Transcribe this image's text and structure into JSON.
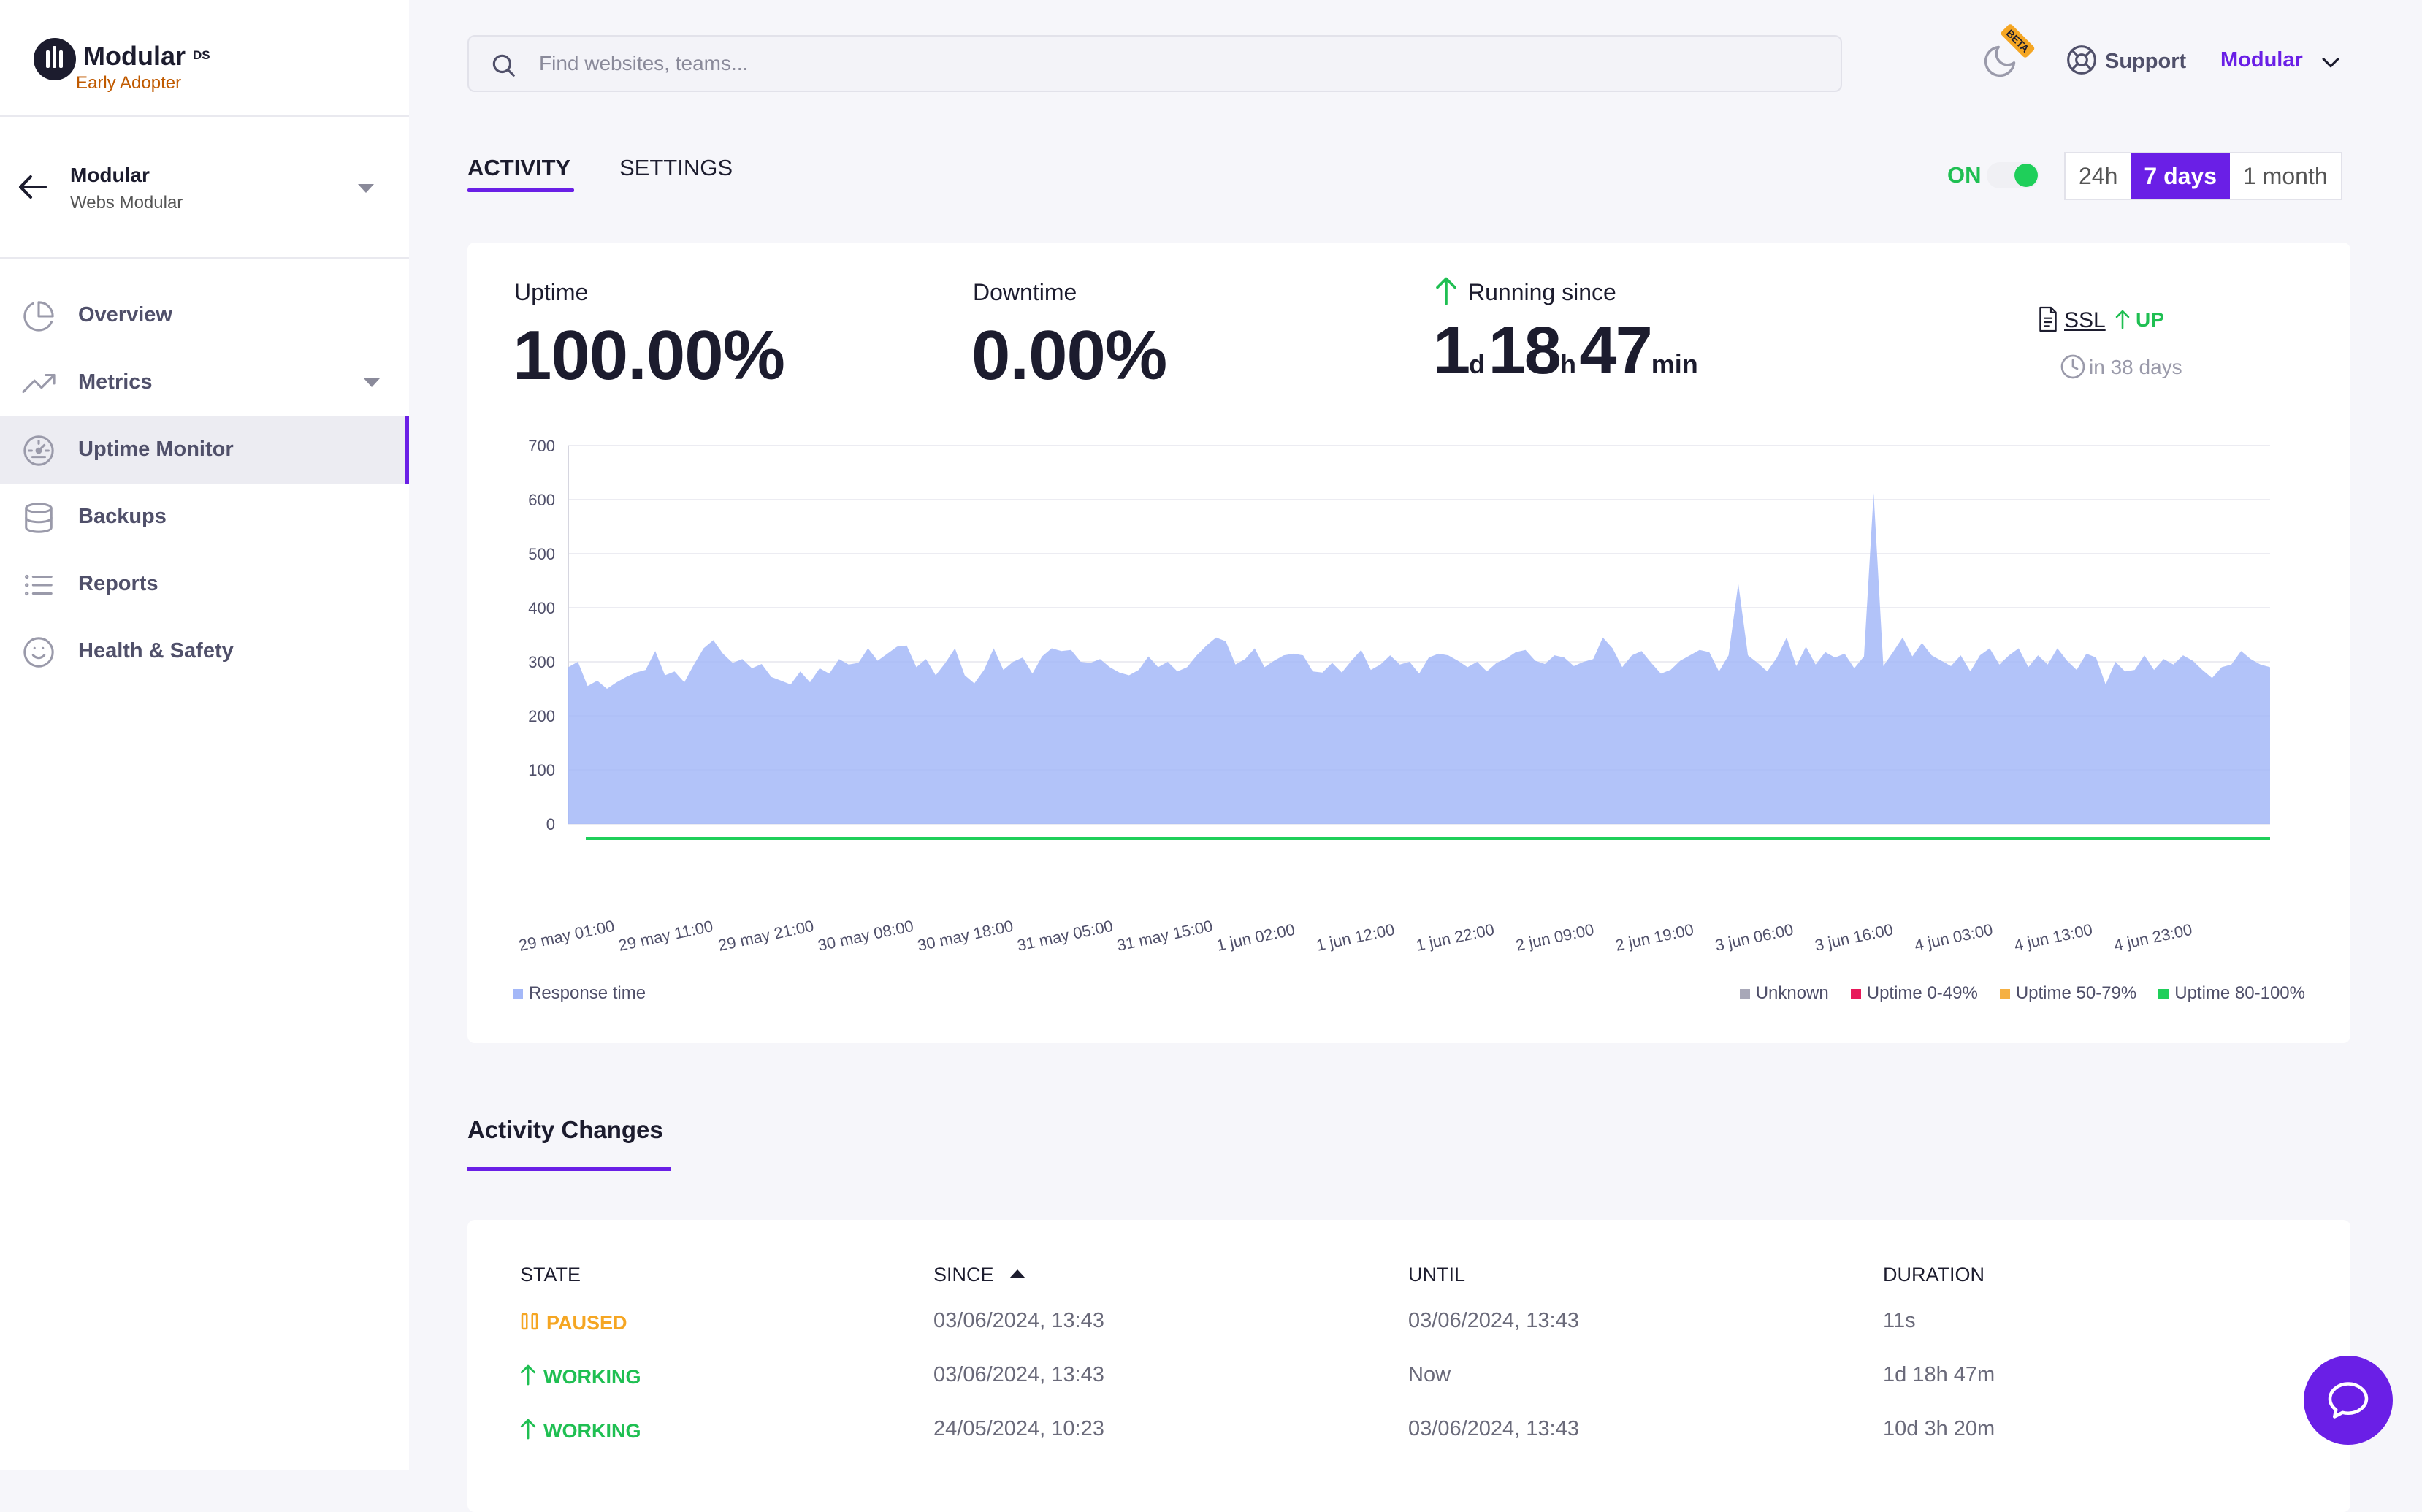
{
  "brand": {
    "name": "Modular",
    "suffix": "DS",
    "tagline": "Early Adopter"
  },
  "site": {
    "name": "Modular",
    "subtitle": "Webs Modular"
  },
  "sidebar": {
    "items": [
      {
        "label": "Overview",
        "icon": "pie-chart-icon",
        "active": false
      },
      {
        "label": "Metrics",
        "icon": "trending-up-icon",
        "active": false,
        "has_caret": true
      },
      {
        "label": "Uptime Monitor",
        "icon": "gauge-icon",
        "active": true
      },
      {
        "label": "Backups",
        "icon": "database-icon",
        "active": false
      },
      {
        "label": "Reports",
        "icon": "list-icon",
        "active": false
      },
      {
        "label": "Health & Safety",
        "icon": "smiley-icon",
        "active": false
      }
    ]
  },
  "topbar": {
    "search_placeholder": "Find websites, teams...",
    "beta_badge": "BETA",
    "support_label": "Support",
    "user_label": "Modular"
  },
  "tabs": [
    {
      "label": "ACTIVITY",
      "active": true
    },
    {
      "label": "SETTINGS",
      "active": false
    }
  ],
  "monitor": {
    "status_label": "ON",
    "enabled": true
  },
  "time_range": {
    "options": [
      "24h",
      "7 days",
      "1 month"
    ],
    "selected": "7 days"
  },
  "stats": {
    "uptime_label": "Uptime",
    "uptime_value": "100.00%",
    "downtime_label": "Downtime",
    "downtime_value": "0.00%",
    "running_label": "Running since",
    "running": {
      "d": "1",
      "d_unit": "d",
      "h": "18",
      "h_unit": "h",
      "m": "47",
      "m_unit": "min"
    },
    "ssl_label": "SSL",
    "ssl_status": "UP",
    "ssl_expiry": "in 38 days"
  },
  "chart_data": {
    "type": "area",
    "x_tick_labels": [
      "29 may 01:00",
      "29 may 11:00",
      "29 may 21:00",
      "30 may 08:00",
      "30 may 18:00",
      "31 may 05:00",
      "31 may 15:00",
      "1 jun 02:00",
      "1 jun 12:00",
      "1 jun 22:00",
      "2 jun 09:00",
      "2 jun 19:00",
      "3 jun 06:00",
      "3 jun 16:00",
      "4 jun 03:00",
      "4 jun 13:00",
      "4 jun 23:00"
    ],
    "y_ticks": [
      0,
      100,
      200,
      300,
      400,
      500,
      600,
      700
    ],
    "ylim": [
      0,
      700
    ],
    "series": [
      {
        "name": "Response time",
        "color": "#a4b8f8",
        "values": [
          290,
          300,
          255,
          265,
          250,
          262,
          272,
          280,
          285,
          320,
          275,
          282,
          262,
          295,
          325,
          340,
          315,
          298,
          305,
          288,
          296,
          272,
          265,
          258,
          282,
          262,
          288,
          278,
          305,
          295,
          298,
          325,
          302,
          315,
          328,
          330,
          290,
          305,
          275,
          298,
          325,
          275,
          260,
          285,
          325,
          285,
          300,
          308,
          278,
          310,
          325,
          320,
          322,
          300,
          298,
          305,
          290,
          280,
          275,
          285,
          310,
          290,
          300,
          282,
          290,
          312,
          330,
          345,
          338,
          295,
          305,
          325,
          290,
          302,
          312,
          315,
          312,
          282,
          280,
          298,
          280,
          302,
          322,
          285,
          295,
          312,
          295,
          300,
          278,
          308,
          315,
          312,
          302,
          290,
          300,
          282,
          298,
          306,
          318,
          322,
          302,
          296,
          312,
          308,
          292,
          300,
          305,
          345,
          325,
          290,
          312,
          320,
          298,
          278,
          285,
          302,
          312,
          322,
          318,
          282,
          312,
          445,
          312,
          298,
          282,
          308,
          345,
          292,
          328,
          295,
          318,
          308,
          315,
          288,
          310,
          612,
          292,
          318,
          345,
          310,
          335,
          312,
          302,
          292,
          312,
          282,
          312,
          325,
          295,
          312,
          325,
          290,
          312,
          295,
          325,
          302,
          285,
          315,
          308,
          258,
          300,
          282,
          285,
          312,
          285,
          305,
          295,
          312,
          302,
          285,
          270,
          290,
          295,
          320,
          305,
          295,
          290
        ]
      },
      {
        "name": "Uptime 80-100%",
        "color": "#1fcf5a",
        "values": [
          100
        ]
      }
    ],
    "legend_left": [
      {
        "label": "Response time",
        "color": "#a4b8f8"
      }
    ],
    "legend_right": [
      {
        "label": "Unknown",
        "color": "#a8a8b8"
      },
      {
        "label": "Uptime 0-49%",
        "color": "#e8185a"
      },
      {
        "label": "Uptime 50-79%",
        "color": "#f5b042"
      },
      {
        "label": "Uptime 80-100%",
        "color": "#1fcf5a"
      }
    ]
  },
  "activity": {
    "title": "Activity Changes",
    "headers": {
      "state": "STATE",
      "since": "SINCE",
      "until": "UNTIL",
      "duration": "DURATION"
    },
    "rows": [
      {
        "state": "PAUSED",
        "kind": "paused",
        "since": "03/06/2024, 13:43",
        "until": "03/06/2024, 13:43",
        "duration": "11s"
      },
      {
        "state": "WORKING",
        "kind": "working",
        "since": "03/06/2024, 13:43",
        "until": "Now",
        "duration": "1d 18h 47m"
      },
      {
        "state": "WORKING",
        "kind": "working",
        "since": "24/05/2024, 10:23",
        "until": "03/06/2024, 13:43",
        "duration": "10d 3h 20m"
      }
    ]
  }
}
